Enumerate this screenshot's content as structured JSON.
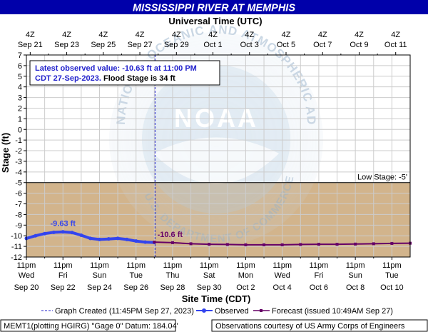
{
  "chart_data": {
    "type": "line",
    "title": "MISSISSIPPI RIVER AT MEMPHIS",
    "top_axis_title": "Universal Time (UTC)",
    "top_ticks": [
      {
        "hour": "4Z",
        "date": "Sep 21"
      },
      {
        "hour": "4Z",
        "date": "Sep 23"
      },
      {
        "hour": "4Z",
        "date": "Sep 25"
      },
      {
        "hour": "4Z",
        "date": "Sep 27"
      },
      {
        "hour": "4Z",
        "date": "Sep 29"
      },
      {
        "hour": "4Z",
        "date": "Oct  1"
      },
      {
        "hour": "4Z",
        "date": "Oct  3"
      },
      {
        "hour": "4Z",
        "date": "Oct  5"
      },
      {
        "hour": "4Z",
        "date": "Oct  7"
      },
      {
        "hour": "4Z",
        "date": "Oct  9"
      },
      {
        "hour": "4Z",
        "date": "Oct 11"
      }
    ],
    "bottom_axis_title": "Site Time (CDT)",
    "bottom_ticks": [
      {
        "time": "11pm",
        "day": "Wed",
        "date": "Sep 20"
      },
      {
        "time": "11pm",
        "day": "Fri",
        "date": "Sep 22"
      },
      {
        "time": "11pm",
        "day": "Sun",
        "date": "Sep 24"
      },
      {
        "time": "11pm",
        "day": "Tue",
        "date": "Sep 26"
      },
      {
        "time": "11pm",
        "day": "Thu",
        "date": "Sep 28"
      },
      {
        "time": "11pm",
        "day": "Sat",
        "date": "Sep 30"
      },
      {
        "time": "11pm",
        "day": "Mon",
        "date": "Oct  2"
      },
      {
        "time": "11pm",
        "day": "Wed",
        "date": "Oct  4"
      },
      {
        "time": "11pm",
        "day": "Fri",
        "date": "Oct  6"
      },
      {
        "time": "11pm",
        "day": "Sun",
        "date": "Oct  8"
      },
      {
        "time": "11pm",
        "day": "Tue",
        "date": "Oct 10"
      }
    ],
    "ylabel": "Stage (ft)",
    "ylim": [
      -12,
      7
    ],
    "yticks": [
      7,
      6,
      5,
      4,
      3,
      2,
      1,
      0,
      -1,
      -2,
      -3,
      -4,
      -5,
      -6,
      -7,
      -8,
      -9,
      -10,
      -11,
      -12
    ],
    "grid": true,
    "low_stage": {
      "value": -5,
      "label": "Low Stage: -5'",
      "color": "#d2b48c"
    },
    "info_box": {
      "line1": "Latest observed value: -10.63 ft at 11:00 PM",
      "line2_blue": "CDT 27-Sep-2023.",
      "line2_black": " Flood Stage is 34 ft"
    },
    "graph_created_day": 7.04,
    "series": [
      {
        "name": "Observed",
        "color": "#3344ee",
        "annotation": {
          "text": "-9.63 ft",
          "x": 2.0,
          "y": -9.63
        },
        "x": [
          0.0,
          0.5,
          1.0,
          1.5,
          2.0,
          2.5,
          3.0,
          3.5,
          4.0,
          4.5,
          5.0,
          5.5,
          6.0,
          6.5,
          7.0
        ],
        "y": [
          -10.25,
          -10.0,
          -9.8,
          -9.68,
          -9.63,
          -9.7,
          -9.95,
          -10.25,
          -10.35,
          -10.3,
          -10.25,
          -10.35,
          -10.5,
          -10.6,
          -10.63
        ]
      },
      {
        "name": "Forecast (issued 10:49AM Sep 27)",
        "color": "#660066",
        "annotation": {
          "text": "-10.6 ft",
          "x": 7.0,
          "y": -10.6
        },
        "x": [
          7.0,
          8.0,
          9.0,
          10.0,
          11.0,
          12.0,
          13.0,
          14.0,
          15.0,
          16.0,
          17.0,
          18.0,
          19.0,
          20.0,
          21.0
        ],
        "y": [
          -10.6,
          -10.65,
          -10.75,
          -10.8,
          -10.82,
          -10.85,
          -10.85,
          -10.85,
          -10.82,
          -10.8,
          -10.8,
          -10.78,
          -10.75,
          -10.72,
          -10.7
        ]
      }
    ],
    "legend": {
      "created": "Graph Created (11:45PM Sep 27, 2023)",
      "observed": "Observed",
      "forecast": "Forecast (issued 10:49AM Sep 27)"
    },
    "footer_left": "MEMT1(plotting HGIRG) \"Gage 0\" Datum: 184.04'",
    "footer_right": "Observations courtesy of US Army Corps of Engineers",
    "colors": {
      "title_bg": "#0000aa",
      "title_fg": "#ffffff",
      "plot_bg": "#ffffff",
      "grid": "#cccccc",
      "info_text": "#2222cc"
    },
    "watermark": {
      "text": "NOAA",
      "ring_text": "NATIONAL OCEANIC AND ATMOSPHERIC ADMINISTRATION",
      "bottom_text": "U.S. DEPARTMENT OF COMMERCE"
    }
  }
}
